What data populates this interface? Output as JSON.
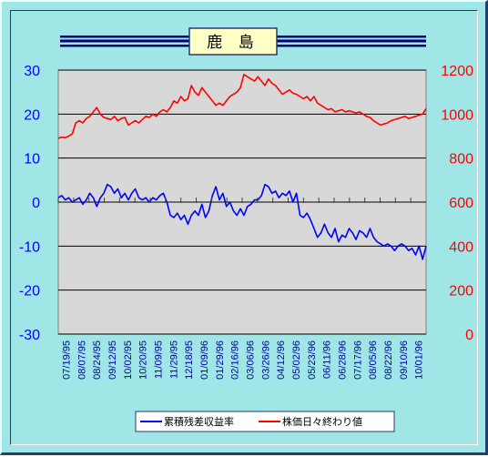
{
  "chart_data": {
    "type": "line",
    "title": "鹿 島",
    "x_tick_labels": [
      "07/19/95",
      "08/07/95",
      "08/24/95",
      "09/12/95",
      "10/02/95",
      "10/20/95",
      "11/09/95",
      "11/29/95",
      "12/18/95",
      "01/09/96",
      "01/29/96",
      "02/16/96",
      "03/06/96",
      "03/26/96",
      "04/12/96",
      "05/02/96",
      "05/23/96",
      "06/11/96",
      "06/28/96",
      "07/17/96",
      "08/05/96",
      "08/22/96",
      "09/10/96",
      "10/01/96"
    ],
    "y_left": {
      "ylim": [
        -30,
        30
      ],
      "ticks": [
        -30,
        -20,
        -10,
        0,
        10,
        20,
        30
      ]
    },
    "y_right": {
      "ylim": [
        0,
        1200
      ],
      "ticks": [
        0,
        200,
        400,
        600,
        800,
        1000,
        1200
      ]
    },
    "grid": "horizontal",
    "legend_position": "bottom",
    "colors": {
      "series1": "#0000ff",
      "series2": "#ff0000",
      "plot_bg": "#d8d8d8",
      "frame_bg": "#a0e6e6",
      "title_bar": "#00007a"
    },
    "series": [
      {
        "name": "累積残差収益率",
        "axis": "left",
        "color": "#0000ff",
        "x": [
          0,
          3,
          6,
          9,
          12,
          15,
          18,
          21,
          24,
          27,
          30,
          33,
          36,
          39,
          42,
          45,
          48,
          51,
          54,
          57,
          60,
          63,
          66,
          69,
          72,
          75,
          78,
          81,
          84,
          87,
          90,
          93,
          96,
          99,
          102,
          105,
          108,
          111,
          114,
          117,
          120,
          123,
          126,
          129,
          132,
          135,
          138,
          141,
          144,
          147,
          150,
          153,
          156,
          159,
          162,
          165,
          168,
          171,
          174,
          177,
          180,
          183,
          186,
          189,
          192,
          195,
          198,
          201,
          204,
          207,
          210,
          213,
          216,
          219,
          222,
          225,
          228,
          231,
          234,
          237,
          240,
          243,
          246,
          249,
          252,
          255,
          258,
          261,
          264,
          267,
          270,
          273,
          276,
          279,
          282,
          285,
          288,
          291,
          294,
          297,
          300,
          303,
          306,
          309,
          312,
          315
        ],
        "values": [
          1.0,
          1.5,
          0.5,
          1.0,
          0.0,
          0.5,
          1.0,
          -0.5,
          0.5,
          2.0,
          1.0,
          -1.0,
          1.0,
          2.0,
          4.0,
          3.5,
          2.0,
          3.0,
          1.0,
          2.0,
          0.5,
          2.0,
          3.0,
          1.0,
          0.5,
          1.0,
          0.0,
          1.0,
          0.5,
          1.5,
          2.0,
          0.0,
          -3.0,
          -3.5,
          -2.5,
          -4.0,
          -3.0,
          -5.0,
          -3.0,
          -2.0,
          -3.0,
          -0.5,
          -3.5,
          -2.0,
          1.5,
          3.5,
          0.5,
          2.0,
          -1.0,
          0.0,
          -2.0,
          -3.0,
          -1.5,
          -3.0,
          -1.0,
          -0.5,
          0.5,
          0.5,
          1.5,
          4.0,
          3.5,
          2.0,
          2.5,
          1.0,
          2.0,
          1.5,
          2.5,
          0.0,
          2.0,
          -3.0,
          -3.5,
          -2.5,
          -4.0,
          -6.0,
          -8.0,
          -7.0,
          -5.0,
          -7.0,
          -8.0,
          -6.0,
          -9.0,
          -7.5,
          -8.0,
          -6.0,
          -7.0,
          -8.5,
          -6.5,
          -7.0,
          -8.0,
          -6.0,
          -8.0,
          -9.0,
          -9.5,
          -10.0,
          -9.5,
          -10.0,
          -11.0,
          -10.0,
          -9.5,
          -10.0,
          -11.0,
          -10.5,
          -12.0,
          -10.0,
          -13.0,
          -10.0
        ]
      },
      {
        "name": "株価日々終わり値",
        "axis": "right",
        "color": "#ff0000",
        "x": [
          0,
          3,
          6,
          9,
          12,
          15,
          18,
          21,
          24,
          27,
          30,
          33,
          36,
          39,
          42,
          45,
          48,
          51,
          54,
          57,
          60,
          63,
          66,
          69,
          72,
          75,
          78,
          81,
          84,
          87,
          90,
          93,
          96,
          99,
          102,
          105,
          108,
          111,
          114,
          117,
          120,
          123,
          126,
          129,
          132,
          135,
          138,
          141,
          144,
          147,
          150,
          153,
          156,
          159,
          162,
          165,
          168,
          171,
          174,
          177,
          180,
          183,
          186,
          189,
          192,
          195,
          198,
          201,
          204,
          207,
          210,
          213,
          216,
          219,
          222,
          225,
          228,
          231,
          234,
          237,
          240,
          243,
          246,
          249,
          252,
          255,
          258,
          261,
          264,
          267,
          270,
          273,
          276,
          279,
          282,
          285,
          288,
          291,
          294,
          297,
          300,
          303,
          306,
          309,
          312,
          315
        ],
        "values": [
          890,
          895,
          893,
          900,
          910,
          960,
          970,
          960,
          980,
          990,
          1010,
          1030,
          1000,
          985,
          980,
          975,
          990,
          970,
          980,
          985,
          950,
          960,
          970,
          960,
          975,
          990,
          985,
          1000,
          990,
          1010,
          1020,
          1010,
          1030,
          1060,
          1050,
          1080,
          1060,
          1070,
          1130,
          1100,
          1085,
          1120,
          1100,
          1080,
          1060,
          1040,
          1050,
          1040,
          1060,
          1080,
          1090,
          1100,
          1120,
          1180,
          1170,
          1160,
          1150,
          1170,
          1150,
          1130,
          1160,
          1140,
          1130,
          1110,
          1090,
          1100,
          1110,
          1095,
          1090,
          1080,
          1070,
          1080,
          1060,
          1080,
          1050,
          1040,
          1030,
          1020,
          1025,
          1010,
          1015,
          1020,
          1010,
          1015,
          1010,
          1005,
          1010,
          1000,
          990,
          985,
          970,
          960,
          950,
          955,
          960,
          970,
          975,
          980,
          985,
          990,
          980,
          985,
          990,
          995,
          1000,
          1025
        ]
      }
    ]
  }
}
